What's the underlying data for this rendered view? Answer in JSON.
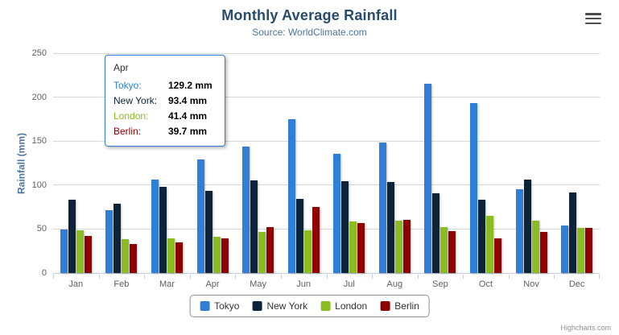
{
  "chart": {
    "title": "Monthly Average Rainfall",
    "subtitle": "Source: WorldClimate.com",
    "ylabel": "Rainfall (mm)",
    "credits": "Highcharts.com",
    "export_icon": "hamburger-menu-icon"
  },
  "chart_data": {
    "type": "bar",
    "title": "Monthly Average Rainfall",
    "subtitle": "Source: WorldClimate.com",
    "xlabel": "",
    "ylabel": "Rainfall (mm)",
    "ylim": [
      0,
      250
    ],
    "yticks": [
      0,
      50,
      100,
      150,
      200,
      250
    ],
    "grid": true,
    "legend_position": "bottom",
    "categories": [
      "Jan",
      "Feb",
      "Mar",
      "Apr",
      "May",
      "Jun",
      "Jul",
      "Aug",
      "Sep",
      "Oct",
      "Nov",
      "Dec"
    ],
    "series": [
      {
        "name": "Tokyo",
        "color": "#2f7ed8",
        "values": [
          49.9,
          71.5,
          106.4,
          129.2,
          144.0,
          176.0,
          135.6,
          148.5,
          216.4,
          194.1,
          95.6,
          54.4
        ]
      },
      {
        "name": "New York",
        "color": "#0d233a",
        "values": [
          83.6,
          78.8,
          98.5,
          93.4,
          106.0,
          84.5,
          105.0,
          104.3,
          91.2,
          83.5,
          106.6,
          92.3
        ]
      },
      {
        "name": "London",
        "color": "#8bbc21",
        "values": [
          48.9,
          38.8,
          39.3,
          41.4,
          47.0,
          48.3,
          59.0,
          59.6,
          52.4,
          65.2,
          59.3,
          51.2
        ]
      },
      {
        "name": "Berlin",
        "color": "#910000",
        "values": [
          42.4,
          33.2,
          34.5,
          39.7,
          52.6,
          75.5,
          57.4,
          60.4,
          47.6,
          39.1,
          46.8,
          51.1
        ]
      }
    ]
  },
  "tooltip": {
    "category": "Apr",
    "border_color": "#2f7ed8",
    "rows": [
      {
        "name": "Tokyo",
        "value": "129.2 mm"
      },
      {
        "name": "New York",
        "value": "93.4 mm"
      },
      {
        "name": "London",
        "value": "41.4 mm"
      },
      {
        "name": "Berlin",
        "value": "39.7 mm"
      }
    ]
  }
}
